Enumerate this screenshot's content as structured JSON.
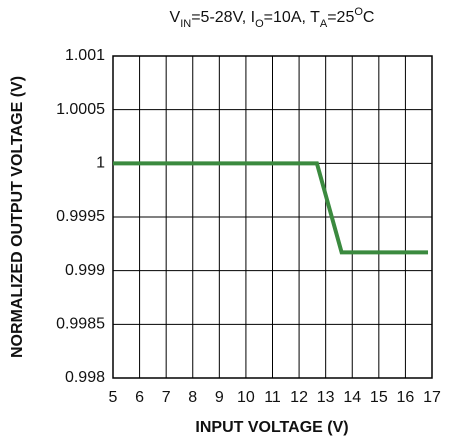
{
  "chart_data": {
    "type": "line",
    "title": [
      {
        "text": "V"
      },
      {
        "text": "IN",
        "shift": "sub"
      },
      {
        "text": "=5-28V, I"
      },
      {
        "text": "O",
        "shift": "sub"
      },
      {
        "text": "=10A, T"
      },
      {
        "text": "A",
        "shift": "sub"
      },
      {
        "text": "=25"
      },
      {
        "text": "O",
        "shift": "super"
      },
      {
        "text": "C"
      }
    ],
    "x_label": "INPUT VOLTAGE (V)",
    "y_label": "NORMALIZED OUTPUT VOLTAGE (V)",
    "x": [
      5,
      12.67,
      13.6,
      16.85
    ],
    "series": [
      {
        "color": "#3b8a3f",
        "values": [
          1,
          1,
          0.99917,
          0.99917
        ]
      }
    ],
    "xlim": [
      5,
      17
    ],
    "xticks": [
      5,
      6,
      7,
      8,
      9,
      10,
      11,
      12,
      13,
      14,
      15,
      16,
      17
    ],
    "ylim": [
      0.998,
      1.001
    ],
    "yticks": [
      0.998,
      0.9985,
      0.999,
      0.9995,
      1,
      1.0005,
      1.001
    ],
    "grid": true
  }
}
